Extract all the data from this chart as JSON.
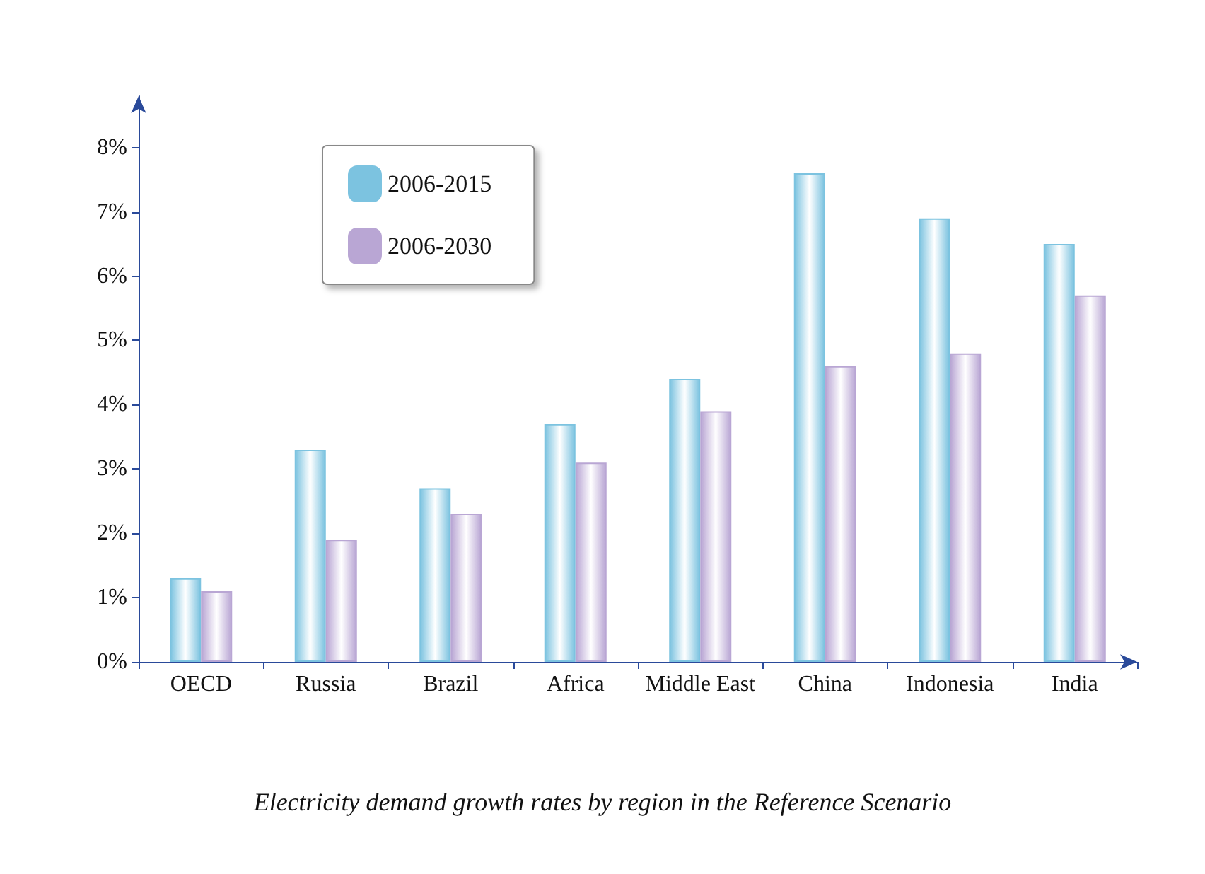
{
  "chart_data": {
    "type": "bar",
    "categories": [
      "OECD",
      "Russia",
      "Brazil",
      "Africa",
      "Middle East",
      "China",
      "Indonesia",
      "India"
    ],
    "series": [
      {
        "name": "2006-2015",
        "color": "#7cc3e0",
        "values": [
          1.3,
          3.3,
          2.7,
          3.7,
          4.4,
          7.6,
          6.9,
          6.5
        ]
      },
      {
        "name": "2006-2030",
        "color": "#b9a6d4",
        "values": [
          1.1,
          1.9,
          2.3,
          3.1,
          3.9,
          4.6,
          4.8,
          5.7
        ]
      }
    ],
    "ylim": [
      0,
      8.8
    ],
    "yticks": [
      {
        "value": 0,
        "label": "0%"
      },
      {
        "value": 1,
        "label": "1%"
      },
      {
        "value": 2,
        "label": "2%"
      },
      {
        "value": 3,
        "label": "3%"
      },
      {
        "value": 4,
        "label": "4%"
      },
      {
        "value": 5,
        "label": "5%"
      },
      {
        "value": 6,
        "label": "6%"
      },
      {
        "value": 7,
        "label": "7%"
      },
      {
        "value": 8,
        "label": "8%"
      }
    ],
    "grid": false,
    "legend": "top left",
    "annotations": [
      "Electricity demand growth rates by region in the Reference Scenario"
    ]
  }
}
